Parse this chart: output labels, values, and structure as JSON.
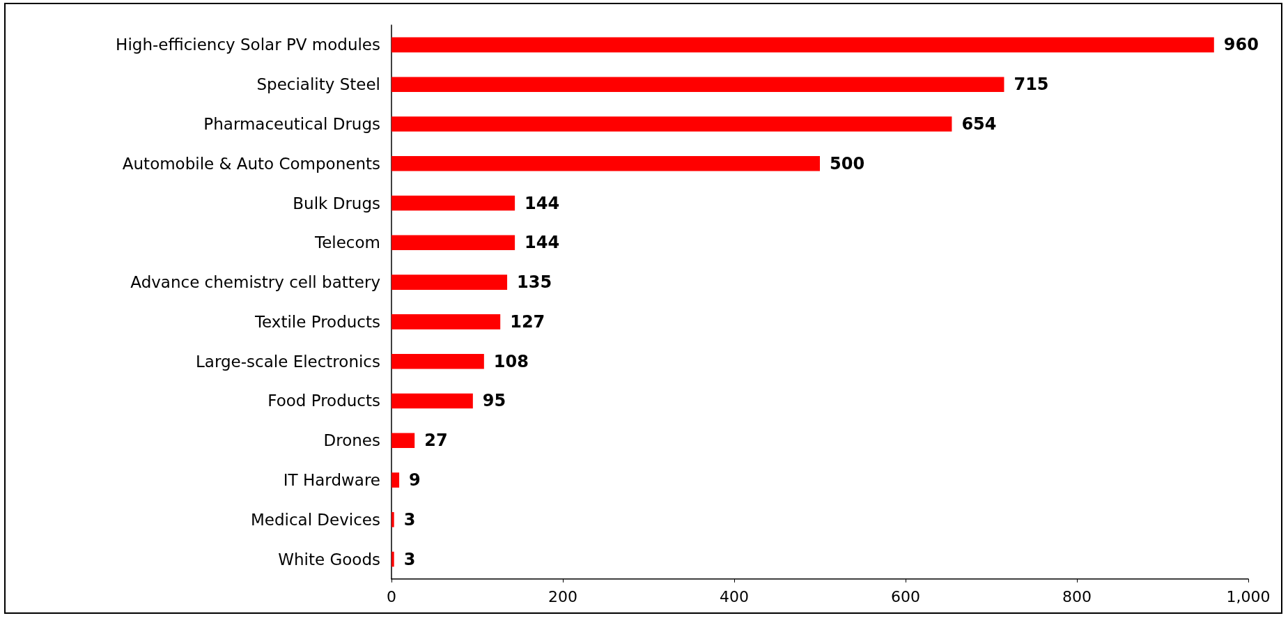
{
  "chart_data": {
    "type": "bar",
    "orientation": "horizontal",
    "categories": [
      "High-efficiency Solar PV modules",
      "Speciality Steel",
      "Pharmaceutical Drugs",
      "Automobile & Auto Components",
      "Bulk Drugs",
      "Telecom",
      "Advance chemistry cell battery",
      "Textile Products",
      "Large-scale Electronics",
      "Food Products",
      "Drones",
      "IT Hardware",
      "Medical Devices",
      "White Goods"
    ],
    "values": [
      960,
      715,
      654,
      500,
      144,
      144,
      135,
      127,
      108,
      95,
      27,
      9,
      3,
      3
    ],
    "color": "#ff0000",
    "xlim": [
      0,
      1000
    ],
    "xticks": [
      0,
      200,
      400,
      600,
      800,
      {
        "value": 1000,
        "label": "1,000"
      }
    ],
    "data_labels": true,
    "grid": false
  }
}
